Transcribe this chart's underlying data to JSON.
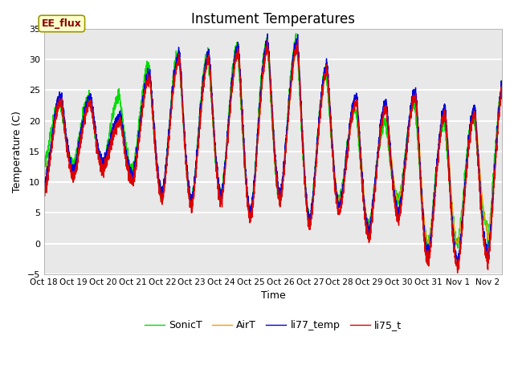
{
  "title": "Instument Temperatures",
  "xlabel": "Time",
  "ylabel": "Temperature (C)",
  "ylim": [
    -5,
    35
  ],
  "annotation": "EE_flux",
  "x_tick_labels": [
    "Oct 18",
    "Oct 19",
    "Oct 20",
    "Oct 21",
    "Oct 22",
    "Oct 23",
    "Oct 24",
    "Oct 25",
    "Oct 26",
    "Oct 27",
    "Oct 28",
    "Oct 29",
    "Oct 30",
    "Oct 31",
    "Nov 1",
    "Nov 2"
  ],
  "legend": [
    "li75_t",
    "li77_temp",
    "SonicT",
    "AirT"
  ],
  "colors": {
    "li75_t": "#dd0000",
    "li77_temp": "#0000dd",
    "SonicT": "#00dd00",
    "AirT": "#ff9900"
  },
  "background_color": "#e8e8e8",
  "fig_background": "#ffffff",
  "grid_color": "#ffffff",
  "annotation_bg": "#ffffcc",
  "annotation_fg": "#880000"
}
